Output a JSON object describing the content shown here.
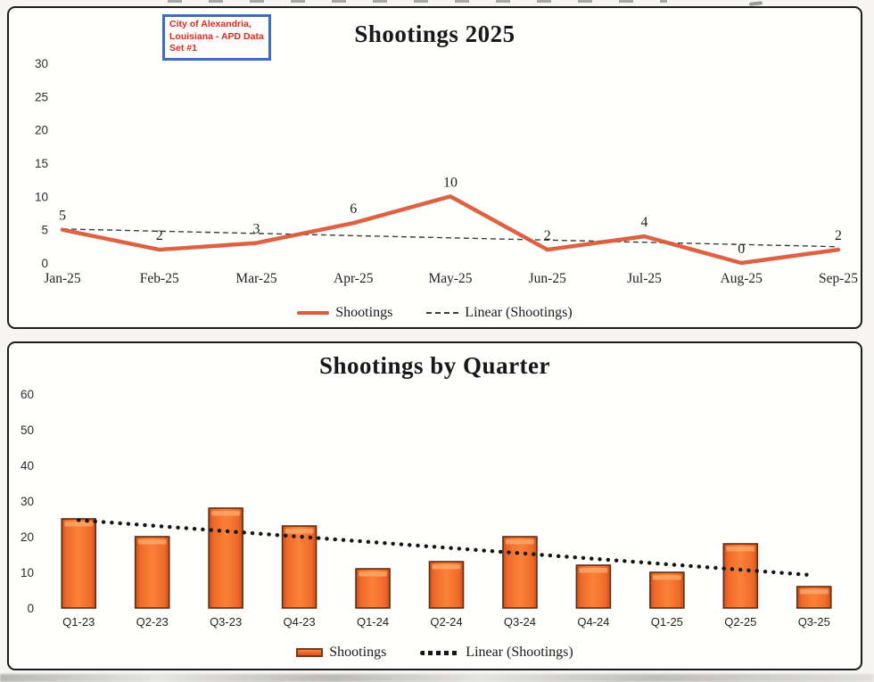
{
  "annotation": {
    "text": "City of Alexandria, Louisiana - APD Data Set #1",
    "text_color": "#d92b21",
    "border_color": "#3f6cc0"
  },
  "chart_data": [
    {
      "type": "line",
      "title": "Shootings 2025",
      "categories": [
        "Jan-25",
        "Feb-25",
        "Mar-25",
        "Apr-25",
        "May-25",
        "Jun-25",
        "Jul-25",
        "Aug-25",
        "Sep-25"
      ],
      "series": [
        {
          "name": "Shootings",
          "values": [
            5,
            2,
            3,
            6,
            10,
            2,
            4,
            0,
            2
          ],
          "color": "#dc5a38"
        }
      ],
      "trendline": {
        "name": "Linear (Shootings)",
        "style": "dashed",
        "color": "#3c3c3c"
      },
      "data_labels": true,
      "ylim": [
        0,
        30
      ],
      "ytick_step": 5,
      "grid": false,
      "legend_position": "bottom"
    },
    {
      "type": "bar",
      "title": "Shootings by Quarter",
      "categories": [
        "Q1-23",
        "Q2-23",
        "Q3-23",
        "Q4-23",
        "Q1-24",
        "Q2-24",
        "Q3-24",
        "Q4-24",
        "Q1-25",
        "Q2-25",
        "Q3-25"
      ],
      "series": [
        {
          "name": "Shootings",
          "values": [
            25,
            20,
            28,
            23,
            11,
            13,
            20,
            12,
            10,
            18,
            6
          ],
          "color": "#f2662b"
        }
      ],
      "trendline": {
        "name": "Linear (Shootings)",
        "style": "dotted",
        "color": "#161616"
      },
      "data_labels": false,
      "ylim": [
        0,
        60
      ],
      "ytick_step": 10,
      "grid": false,
      "legend_position": "bottom"
    }
  ]
}
